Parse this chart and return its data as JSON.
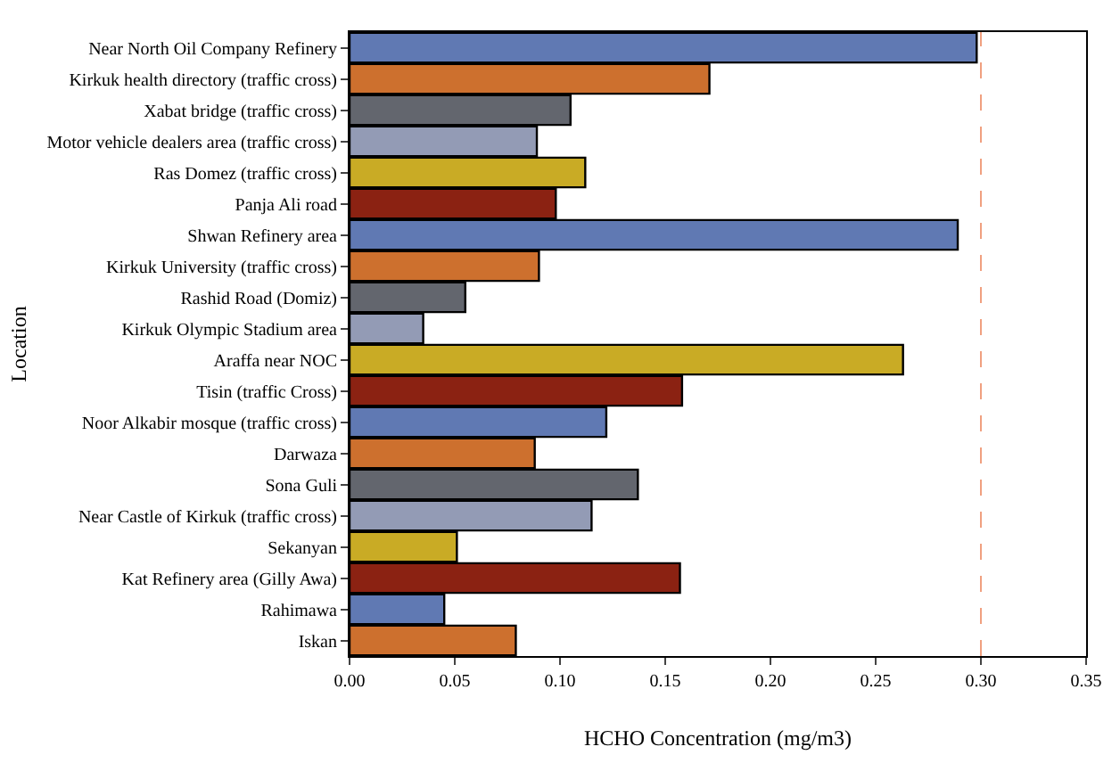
{
  "chart_data": {
    "type": "bar",
    "orientation": "horizontal",
    "xlabel": "HCHO Concentration (mg/m3)",
    "ylabel": "Location",
    "categories": [
      "Near North Oil Company Refinery",
      "Kirkuk health directory (traffic cross)",
      "Xabat bridge (traffic cross)",
      "Motor vehicle dealers area (traffic cross)",
      "Ras Domez (traffic cross)",
      "Panja Ali road",
      "Shwan Refinery area",
      "Kirkuk University (traffic cross)",
      "Rashid Road (Domiz)",
      "Kirkuk Olympic Stadium area",
      "Araffa near NOC",
      "Tisin (traffic Cross)",
      "Noor Alkabir mosque (traffic cross)",
      "Darwaza",
      "Sona Guli",
      "Near Castle of Kirkuk (traffic cross)",
      "Sekanyan",
      "Kat Refinery area (Gilly Awa)",
      "Rahimawa",
      "Iskan"
    ],
    "values": [
      0.298,
      0.171,
      0.105,
      0.089,
      0.112,
      0.098,
      0.289,
      0.09,
      0.055,
      0.035,
      0.263,
      0.158,
      0.122,
      0.088,
      0.137,
      0.115,
      0.051,
      0.157,
      0.045,
      0.079
    ],
    "colors": [
      "#6079b3",
      "#cd702e",
      "#63666e",
      "#939bb5",
      "#c9ab25",
      "#8b2212",
      "#6079b3",
      "#cd702e",
      "#63666e",
      "#939bb5",
      "#c9ab25",
      "#8b2212",
      "#6079b3",
      "#cd702e",
      "#63666e",
      "#939bb5",
      "#c9ab25",
      "#8b2212",
      "#6079b3",
      "#cd702e"
    ],
    "xlim": [
      0,
      0.35
    ],
    "xticks": [
      {
        "value": 0,
        "label": "0.00"
      },
      {
        "value": 0.05,
        "label": "0.05"
      },
      {
        "value": 0.1,
        "label": "0.10"
      },
      {
        "value": 0.15,
        "label": "0.15"
      },
      {
        "value": 0.2,
        "label": "0.20"
      },
      {
        "value": 0.25,
        "label": "0.25"
      },
      {
        "value": 0.3,
        "label": "0.30"
      },
      {
        "value": 0.35,
        "label": "0.35"
      }
    ],
    "ref_lines": [
      {
        "axis": "x",
        "value": 0.3,
        "color": "#f0a080",
        "line_style": "dashed"
      }
    ]
  }
}
